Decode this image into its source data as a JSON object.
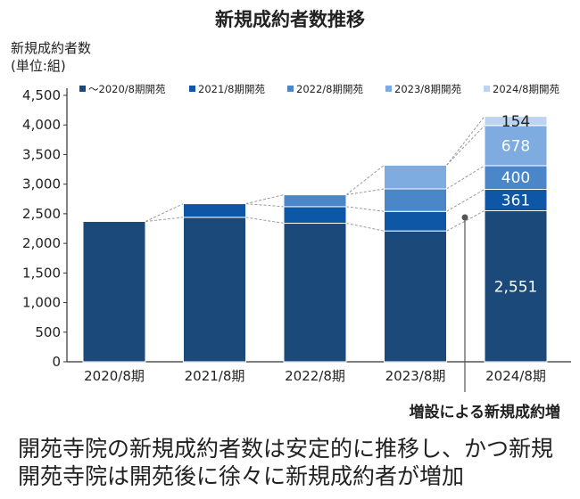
{
  "chart_data": {
    "type": "bar",
    "stacked": true,
    "title": "新規成約者数推移",
    "ylabel": "新規成約者数",
    "yunit": "(単位:組)",
    "categories": [
      "2020/8期",
      "2021/8期",
      "2022/8期",
      "2023/8期",
      "2024/8期"
    ],
    "ylim": [
      0,
      4500
    ],
    "yticks": [
      0,
      500,
      1000,
      1500,
      2000,
      2500,
      3000,
      3500,
      4000,
      4500
    ],
    "ytick_labels": [
      "0",
      "500",
      "1,000",
      "1,500",
      "2,000",
      "2,500",
      "3,000",
      "3,500",
      "4,000",
      "4,500"
    ],
    "legend_position": "top",
    "series": [
      {
        "name": "〜2020/8期開苑",
        "color": "#1b4a7a",
        "values": [
          2370,
          2440,
          2340,
          2210,
          2551
        ]
      },
      {
        "name": "2021/8期開苑",
        "color": "#0e56a6",
        "values": [
          null,
          230,
          280,
          330,
          361
        ]
      },
      {
        "name": "2022/8期開苑",
        "color": "#4a86c8",
        "values": [
          null,
          null,
          200,
          380,
          400
        ]
      },
      {
        "name": "2023/8期開苑",
        "color": "#7eace0",
        "values": [
          null,
          null,
          null,
          400,
          678
        ]
      },
      {
        "name": "2024/8期開苑",
        "color": "#bdd3ef",
        "values": [
          null,
          null,
          null,
          null,
          154
        ]
      }
    ],
    "data_labels": {
      "category": "2024/8期",
      "labels": [
        "2,551",
        "361",
        "400",
        "678",
        "154"
      ]
    },
    "annotation": "増設による新規成約増",
    "grid": false
  },
  "caption": {
    "line1": "開苑寺院の新規成約者数は安定的に推移し、かつ新規",
    "line2": "開苑寺院は開苑後に徐々に新規成約者が増加"
  }
}
